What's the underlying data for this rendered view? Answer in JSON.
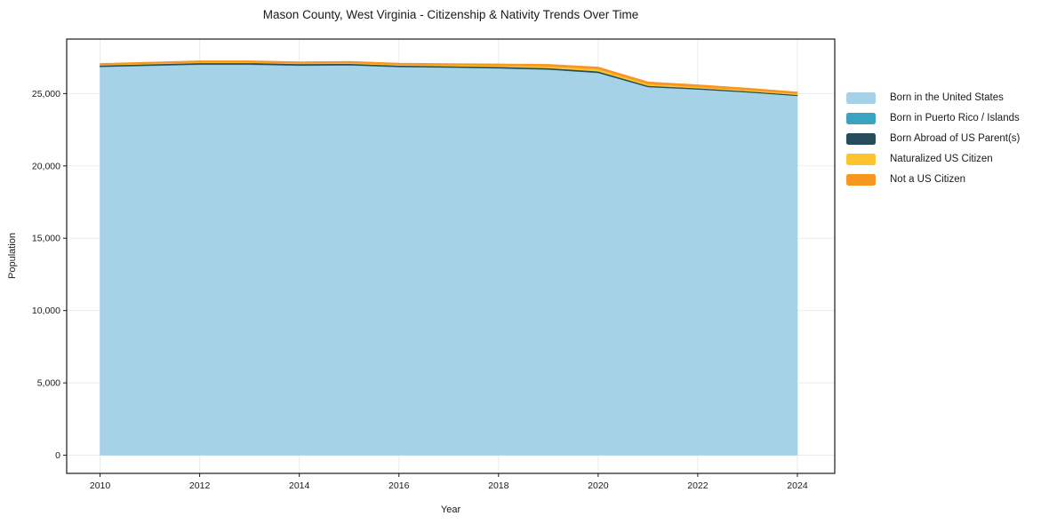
{
  "chart_data": {
    "type": "area",
    "stacked": true,
    "title": "Mason County, West Virginia - Citizenship & Nativity Trends Over Time",
    "xlabel": "Year",
    "ylabel": "Population",
    "x": [
      2010,
      2011,
      2012,
      2013,
      2014,
      2015,
      2016,
      2017,
      2018,
      2019,
      2020,
      2021,
      2022,
      2023,
      2024
    ],
    "series": [
      {
        "name": "Born in the United States",
        "color": "#a6d2e7",
        "values": [
          26843,
          26925,
          27000,
          27000,
          26930,
          26955,
          26840,
          26800,
          26745,
          26660,
          26430,
          25455,
          25290,
          25085,
          24840
        ]
      },
      {
        "name": "Born in Puerto Rico / Islands",
        "color": "#3ba3c2",
        "values": [
          20,
          20,
          20,
          20,
          20,
          20,
          15,
          15,
          15,
          15,
          15,
          10,
          10,
          10,
          10
        ]
      },
      {
        "name": "Born Abroad of US Parent(s)",
        "color": "#254b5c",
        "values": [
          90,
          95,
          100,
          105,
          100,
          95,
          90,
          85,
          90,
          95,
          100,
          85,
          75,
          70,
          65
        ]
      },
      {
        "name": "Naturalized US Citizen",
        "color": "#fdc32f",
        "values": [
          40,
          40,
          45,
          45,
          50,
          55,
          60,
          70,
          85,
          120,
          150,
          110,
          95,
          85,
          75
        ]
      },
      {
        "name": "Not a US Citizen",
        "color": "#f79722",
        "values": [
          90,
          95,
          100,
          100,
          100,
          105,
          105,
          110,
          115,
          130,
          145,
          150,
          140,
          130,
          120
        ]
      }
    ],
    "xticks": [
      2010,
      2012,
      2014,
      2016,
      2018,
      2020,
      2022,
      2024
    ],
    "yticks": [
      0,
      5000,
      10000,
      15000,
      20000,
      25000
    ],
    "xlim": [
      2009.33,
      2024.75
    ],
    "ylim": [
      -1256,
      28768
    ],
    "grid": true,
    "legend_position": "right-outside"
  },
  "colors": {
    "grid": "#ebebeb",
    "spine": "#1a1a1a",
    "tick_text": "#1a1a1a"
  }
}
